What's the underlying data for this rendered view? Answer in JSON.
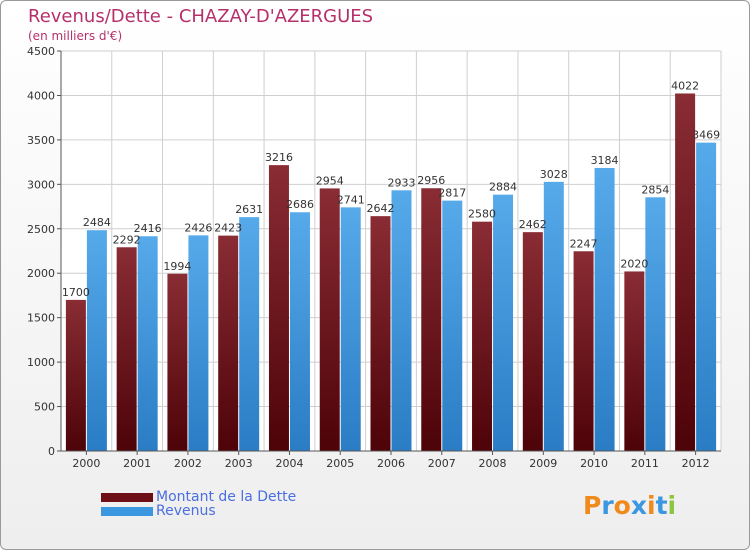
{
  "chart_data": {
    "type": "bar",
    "title": "Revenus/Dette - CHAZAY-D'AZERGUES",
    "subtitle": "(en milliers d'€)",
    "categories": [
      "2000",
      "2001",
      "2002",
      "2003",
      "2004",
      "2005",
      "2006",
      "2007",
      "2008",
      "2009",
      "2010",
      "2011",
      "2012"
    ],
    "series": [
      {
        "name": "Montant de la Dette",
        "color": "#6e0f17",
        "values": [
          1700,
          2292,
          1994,
          2423,
          3216,
          2954,
          2642,
          2956,
          2580,
          2462,
          2247,
          2020,
          4022
        ],
        "labels": [
          "1700",
          "2292",
          "1994",
          "2423",
          "3216",
          "2954",
          "2642",
          "2956",
          "2580",
          "2462",
          "2247",
          "2020",
          "4022"
        ]
      },
      {
        "name": "Revenus",
        "color": "#3b97e0",
        "values": [
          2484,
          2416,
          2426,
          2631,
          2686,
          2741,
          2933,
          2817,
          2884,
          3028,
          3184,
          2854,
          3469
        ],
        "labels": [
          "2484",
          "2416",
          "2426",
          "2631",
          "2686",
          "2741",
          "2933",
          "2817",
          "2884",
          "3028",
          "3184",
          "2854",
          "3469"
        ]
      }
    ],
    "ylim": [
      0,
      4500
    ],
    "yticks": [
      0,
      500,
      1000,
      1500,
      2000,
      2500,
      3000,
      3500,
      4000,
      4500
    ],
    "grid": true,
    "legend_position": "bottom-left"
  },
  "legend": {
    "debt_label": "Montant de la Dette",
    "revenue_label": "Revenus",
    "debt_color": "#6e0f17",
    "revenue_color": "#3b97e0"
  },
  "logo": {
    "text": "Proxiti",
    "letter_colors": [
      "#f08a1c",
      "#3b97e0",
      "#f08a1c",
      "#3b97e0",
      "#f08a1c",
      "#3b97e0",
      "#8cc63f"
    ]
  }
}
